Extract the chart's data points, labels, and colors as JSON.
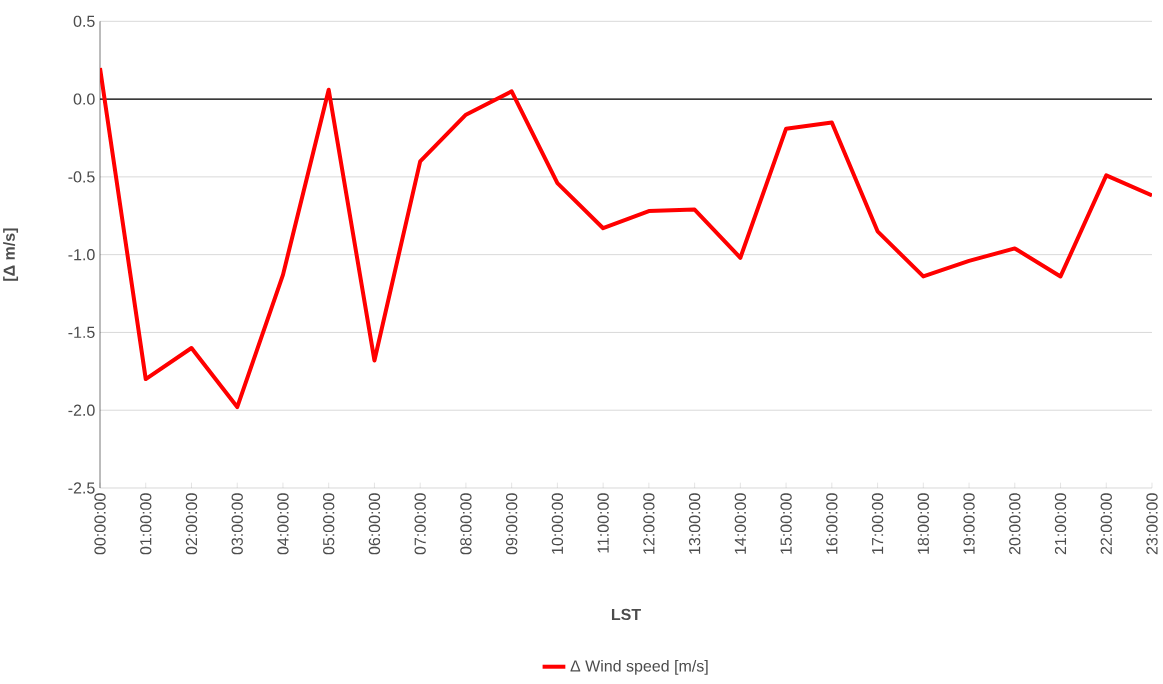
{
  "chart_data": {
    "type": "line",
    "xlabel": "LST",
    "ylabel": "[Δ m/s]",
    "categories": [
      "00:00:00",
      "01:00:00",
      "02:00:00",
      "03:00:00",
      "04:00:00",
      "05:00:00",
      "06:00:00",
      "07:00:00",
      "08:00:00",
      "09:00:00",
      "10:00:00",
      "11:00:00",
      "12:00:00",
      "13:00:00",
      "14:00:00",
      "15:00:00",
      "16:00:00",
      "17:00:00",
      "18:00:00",
      "19:00:00",
      "20:00:00",
      "21:00:00",
      "22:00:00",
      "23:00:00"
    ],
    "series": [
      {
        "name": "Δ Wind speed [m/s]",
        "color": "#ff0000",
        "values": [
          0.2,
          -1.8,
          -1.6,
          -1.98,
          -1.13,
          0.06,
          -1.68,
          -0.4,
          -0.1,
          0.05,
          -0.54,
          -0.83,
          -0.72,
          -0.71,
          -1.02,
          -0.19,
          -0.15,
          -0.85,
          -1.14,
          -1.04,
          -0.96,
          -1.14,
          -0.49,
          -0.62
        ]
      }
    ],
    "ylim": [
      -2.5,
      0.5
    ],
    "yticks": [
      {
        "value": -2.5,
        "label": "-2.5"
      },
      {
        "value": -2.0,
        "label": "-2.0"
      },
      {
        "value": -1.5,
        "label": "-1.5"
      },
      {
        "value": -1.0,
        "label": "-1.0"
      },
      {
        "value": -0.5,
        "label": "-0.5"
      },
      {
        "value": 0,
        "label": "0.0"
      },
      {
        "value": 0.5,
        "label": "0.5"
      }
    ],
    "ref_lines": [
      {
        "axis": "y",
        "value": 0,
        "color": "#000000"
      }
    ],
    "grid": "y",
    "legend": "bottom",
    "marker": "none",
    "line_style": "solid"
  }
}
